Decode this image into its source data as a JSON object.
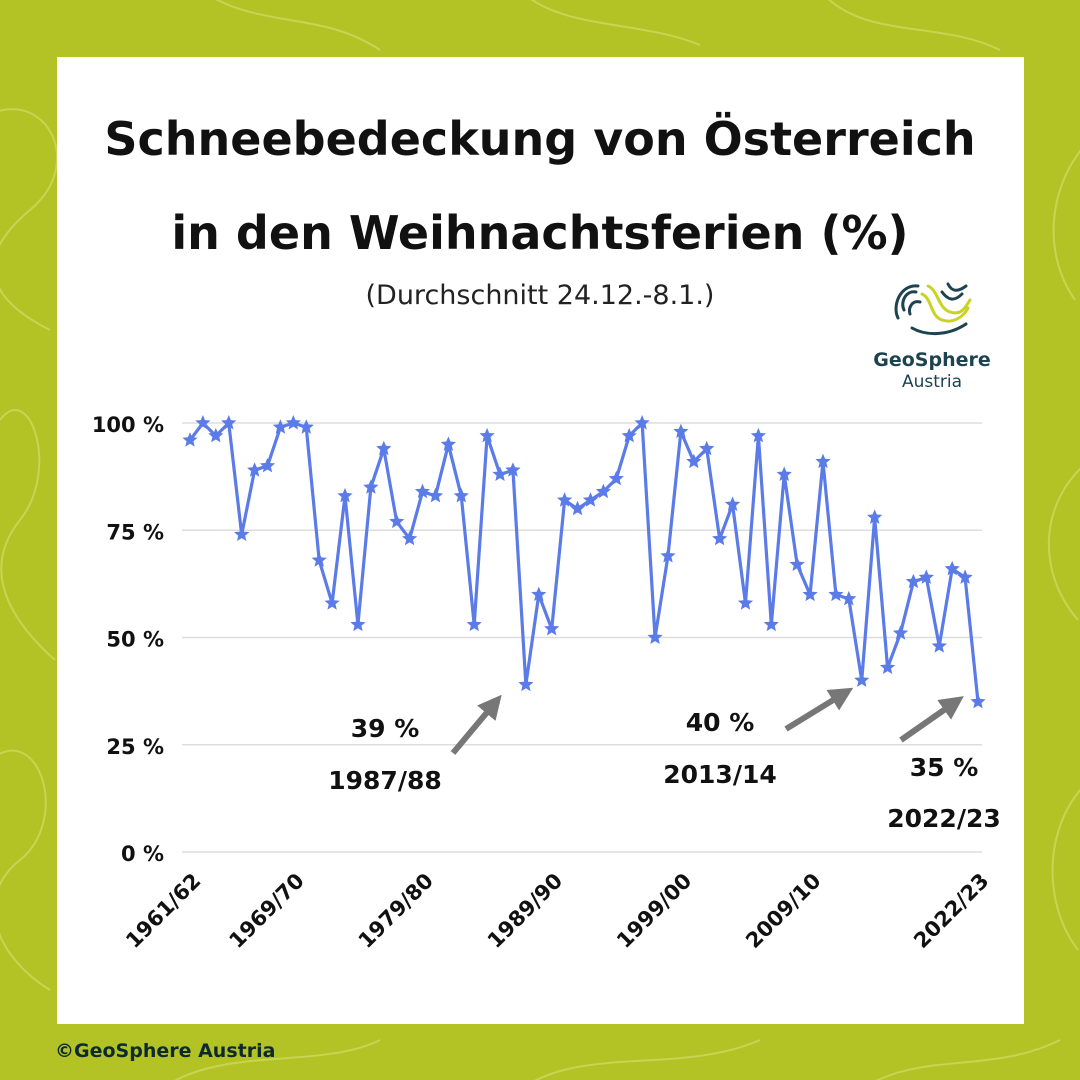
{
  "page": {
    "title_line1": "Schneebedeckung von Österreich",
    "title_line2": "in den Weihnachtsferien (%)",
    "subtitle": "(Durchschnitt 24.12.-8.1.)",
    "copyright": "©GeoSphere Austria",
    "logo": {
      "name": "GeoSphere",
      "sub": "Austria",
      "icon": "geosphere-contour-logo-icon"
    }
  },
  "colors": {
    "background": "#b3c325",
    "card": "#ffffff",
    "line": "#5b7be8",
    "arrow": "#777777",
    "grid": "#dddddd"
  },
  "chart_data": {
    "type": "line",
    "title": "Schneebedeckung von Österreich in den Weihnachtsferien (%)",
    "subtitle": "(Durchschnitt 24.12.-8.1.)",
    "xlabel": "",
    "ylabel": "",
    "ylim": [
      0,
      100
    ],
    "yticks": [
      "0 %",
      "25 %",
      "50 %",
      "75 %",
      "100 %"
    ],
    "yticks_values": [
      0,
      25,
      50,
      75,
      100
    ],
    "xtick_labels": [
      "1961/62",
      "1969/70",
      "1979/80",
      "1989/90",
      "1999/00",
      "2009/10",
      "2022/23"
    ],
    "xtick_years": [
      1961,
      1969,
      1979,
      1989,
      1999,
      2009,
      2022
    ],
    "grid": true,
    "marker": "star",
    "x_start": 1961,
    "x_end": 2022,
    "series": [
      {
        "values": [
          96,
          100,
          97,
          100,
          74,
          89,
          90,
          99,
          100,
          99,
          68,
          58,
          83,
          53,
          85,
          94,
          77,
          73,
          84,
          83,
          95,
          83,
          53,
          97,
          88,
          89,
          39,
          60,
          52,
          82,
          80,
          82,
          84,
          87,
          97,
          100,
          50,
          69,
          98,
          91,
          94,
          73,
          81,
          58,
          97,
          53,
          88,
          67,
          60,
          91,
          60,
          59,
          40,
          78,
          43,
          51,
          63,
          64,
          48,
          66,
          64,
          35
        ]
      }
    ],
    "annotations": [
      {
        "value_label": "39 %",
        "season": "1987/88",
        "year": 1987,
        "value": 39
      },
      {
        "value_label": "40 %",
        "season": "2013/14",
        "year": 2013,
        "value": 40
      },
      {
        "value_label": "35 %",
        "season": "2022/23",
        "year": 2022,
        "value": 35
      }
    ]
  }
}
